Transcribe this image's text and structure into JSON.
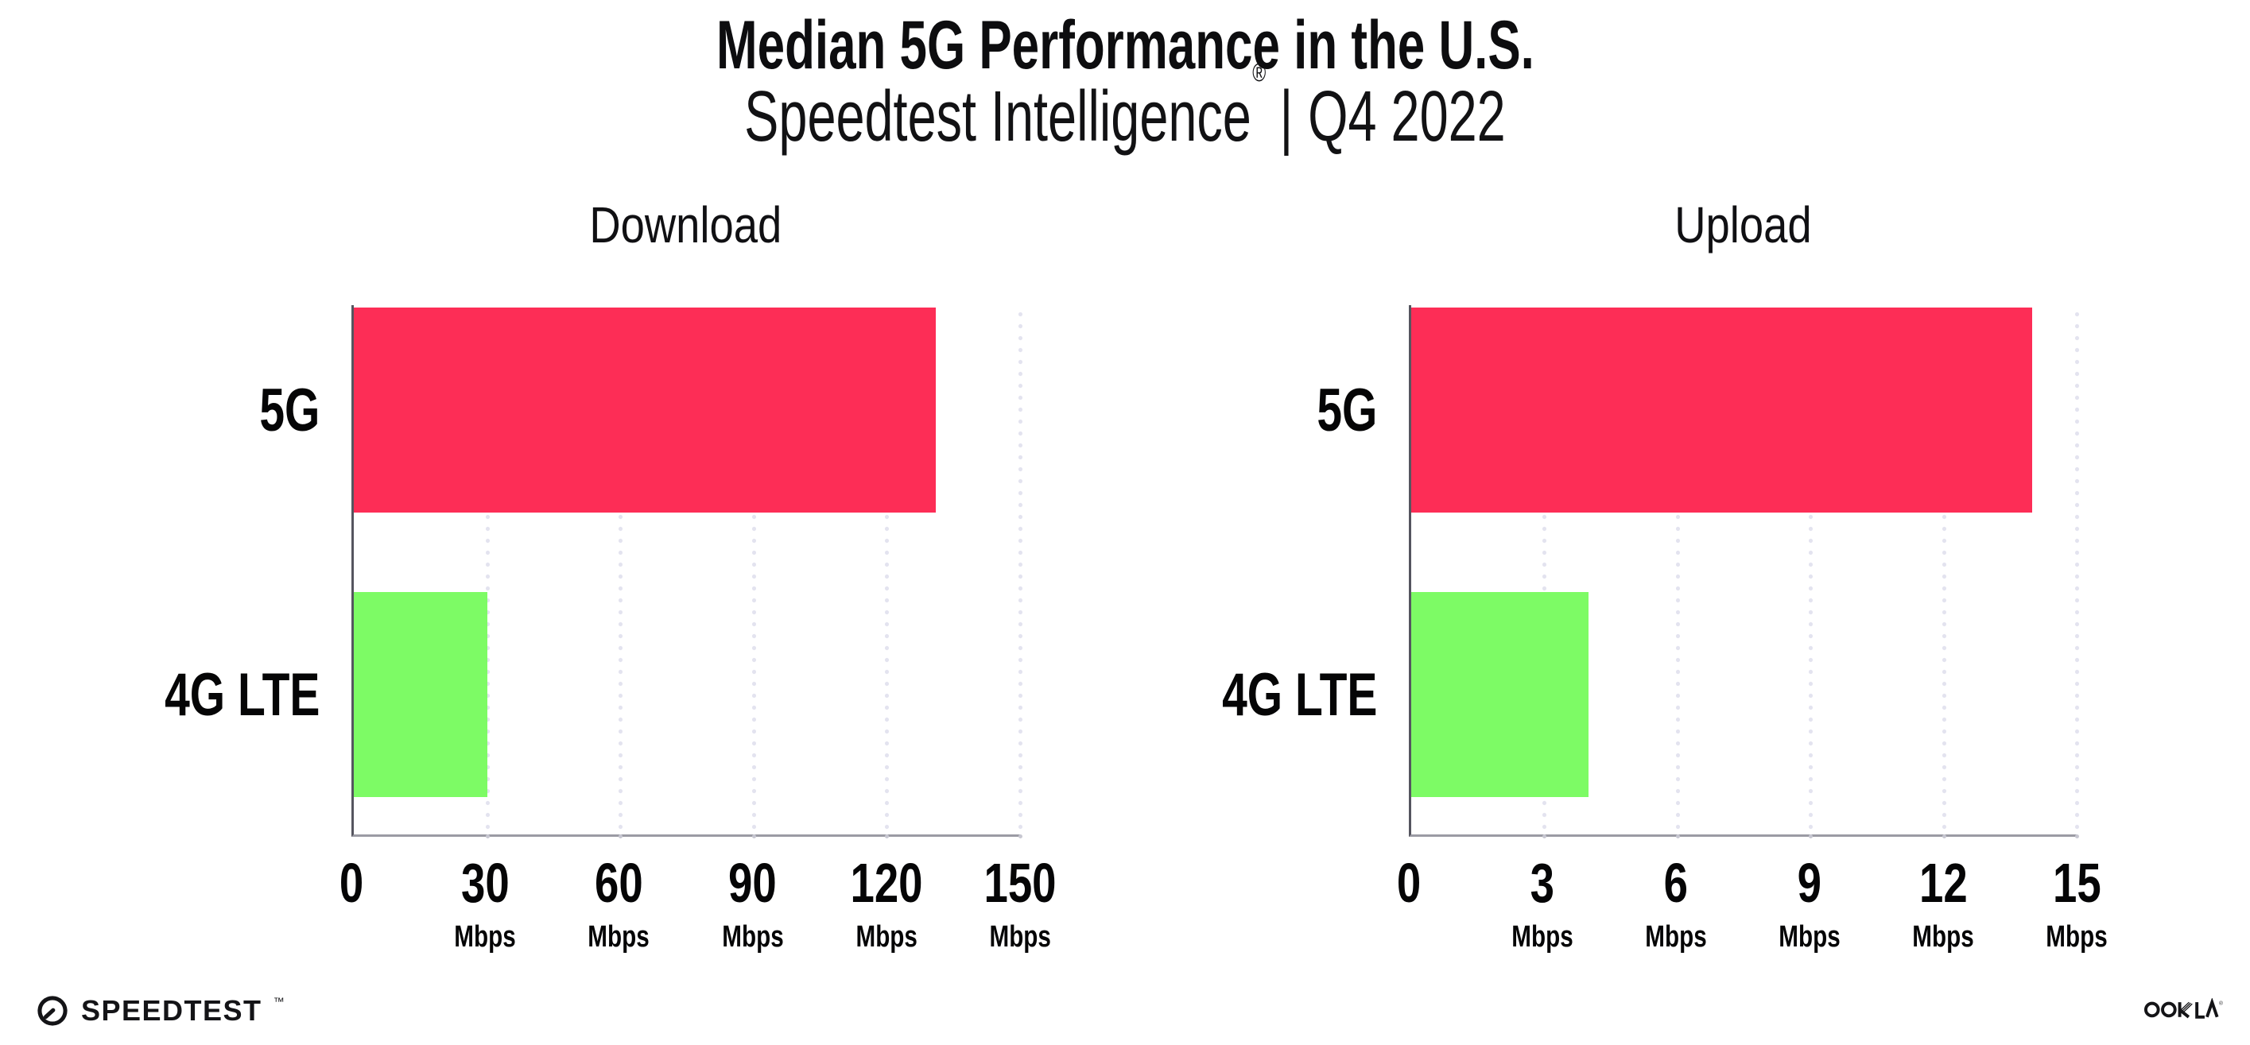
{
  "header": {
    "title": "Median 5G Performance in the U.S.",
    "subtitle_brand": "Speedtest Intelligence",
    "subtitle_reg": "®",
    "subtitle_divider": "|",
    "subtitle_period": "Q4 2022"
  },
  "footer": {
    "speedtest_wordmark": "SPEEDTEST",
    "speedtest_tm": "™",
    "ookla_wordmark": "OOKLA",
    "ookla_reg": "®"
  },
  "colors": {
    "bar_5g": "#FD2D56",
    "bar_4g_lte": "#7DFB65",
    "y_axis": "#55555F",
    "x_axis": "#9B9BA4",
    "gridline": "#E3E3EF",
    "text": "#0D0D0F"
  },
  "chart_data": [
    {
      "type": "bar",
      "orientation": "horizontal",
      "title": "Download",
      "categories": [
        "5G",
        "4G LTE"
      ],
      "values": [
        131,
        30
      ],
      "unit": "Mbps",
      "xlim": [
        0,
        150
      ],
      "xticks": [
        0,
        30,
        60,
        90,
        120,
        150
      ],
      "xlabel": "",
      "ylabel": "",
      "grid": "dotted-vertical-at-ticks",
      "legend": "none",
      "bar_colors": [
        "#FD2D56",
        "#7DFB65"
      ]
    },
    {
      "type": "bar",
      "orientation": "horizontal",
      "title": "Upload",
      "categories": [
        "5G",
        "4G LTE"
      ],
      "values": [
        14,
        4
      ],
      "unit": "Mbps",
      "xlim": [
        0,
        15
      ],
      "xticks": [
        0,
        3,
        6,
        9,
        12,
        15
      ],
      "xlabel": "",
      "ylabel": "",
      "grid": "dotted-vertical-at-ticks",
      "legend": "none",
      "bar_colors": [
        "#FD2D56",
        "#7DFB65"
      ]
    }
  ]
}
